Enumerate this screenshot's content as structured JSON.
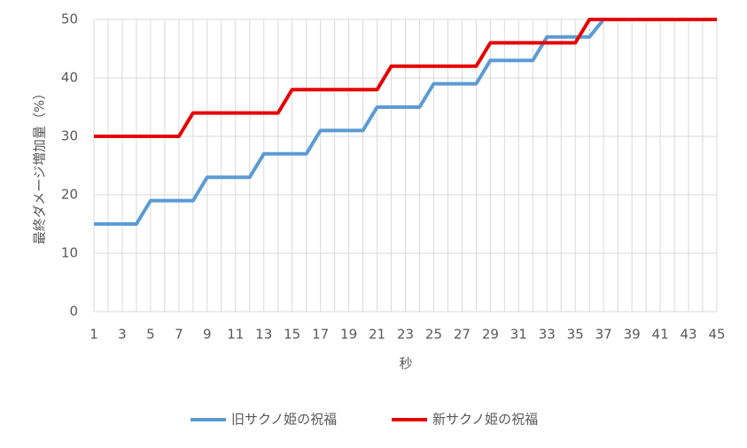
{
  "chart_data": {
    "type": "line",
    "x_label": "秒",
    "y_label": "最終ダメージ増加量（%）",
    "categories": [
      1,
      null,
      3,
      null,
      5,
      null,
      7,
      null,
      9,
      null,
      11,
      null,
      13,
      null,
      15,
      null,
      17,
      null,
      19,
      null,
      21,
      null,
      23,
      null,
      25,
      null,
      27,
      null,
      29,
      null,
      31,
      null,
      33,
      null,
      35,
      null,
      37,
      null,
      39,
      null,
      41,
      null,
      43,
      null,
      45
    ],
    "series": [
      {
        "name": "旧サクノ姫の祝福",
        "color": "#5b9bd5",
        "values": [
          15,
          15,
          15,
          15,
          19,
          19,
          19,
          19,
          23,
          23,
          23,
          23,
          27,
          27,
          27,
          27,
          31,
          31,
          31,
          31,
          35,
          35,
          35,
          35,
          39,
          39,
          39,
          39,
          43,
          43,
          43,
          43,
          47,
          47,
          47,
          47,
          50,
          50,
          50,
          50,
          50,
          50,
          50,
          50,
          50
        ]
      },
      {
        "name": "新サクノ姫の祝福",
        "color": "#e60000",
        "values": [
          30,
          30,
          30,
          30,
          30,
          30,
          30,
          34,
          34,
          34,
          34,
          34,
          34,
          34,
          38,
          38,
          38,
          38,
          38,
          38,
          38,
          42,
          42,
          42,
          42,
          42,
          42,
          42,
          46,
          46,
          46,
          46,
          46,
          46,
          46,
          50,
          50,
          50,
          50,
          50,
          50,
          50,
          50,
          50,
          50
        ]
      }
    ],
    "ylim": [
      0,
      50
    ],
    "yticks": [
      0,
      10,
      20,
      30,
      40,
      50
    ],
    "grid": true,
    "legend": "bottom"
  }
}
